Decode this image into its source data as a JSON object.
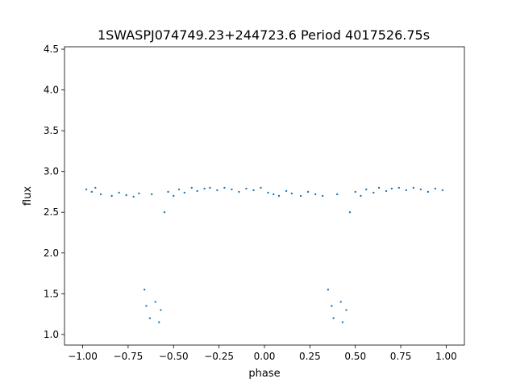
{
  "chart_data": {
    "type": "scatter",
    "title": "1SWASPJ074749.23+244723.6 Period 4017526.75s",
    "xlabel": "phase",
    "ylabel": "flux",
    "xlim": [
      -1.1,
      1.1
    ],
    "ylim": [
      0.87,
      4.53
    ],
    "xticks": [
      -1.0,
      -0.75,
      -0.5,
      -0.25,
      0.0,
      0.25,
      0.5,
      0.75,
      1.0
    ],
    "xtick_labels": [
      "−1.00",
      "−0.75",
      "−0.50",
      "−0.25",
      "0.00",
      "0.25",
      "0.50",
      "0.75",
      "1.00"
    ],
    "yticks": [
      1.0,
      1.5,
      2.0,
      2.5,
      3.0,
      3.5,
      4.0,
      4.5
    ],
    "ytick_labels": [
      "1.0",
      "1.5",
      "2.0",
      "2.5",
      "3.0",
      "3.5",
      "4.0",
      "4.5"
    ],
    "grid": false,
    "marker_color": "#1f77b4",
    "series": [
      {
        "x": [
          -0.98,
          -0.95,
          -0.93,
          -0.9,
          -0.84,
          -0.8,
          -0.76,
          -0.72,
          -0.69,
          -0.66,
          -0.65,
          -0.63,
          -0.62,
          -0.6,
          -0.58,
          -0.57,
          -0.55,
          -0.53,
          -0.5,
          -0.47,
          -0.44,
          -0.4,
          -0.37,
          -0.33,
          -0.3,
          -0.26,
          -0.22,
          -0.18,
          -0.14,
          -0.1,
          -0.06,
          -0.02,
          0.02,
          0.05,
          0.08,
          0.12,
          0.15,
          0.2,
          0.24,
          0.28,
          0.32,
          0.35,
          0.37,
          0.38,
          0.4,
          0.42,
          0.43,
          0.45,
          0.47,
          0.5,
          0.53,
          0.56,
          0.6,
          0.63,
          0.67,
          0.7,
          0.74,
          0.78,
          0.82,
          0.86,
          0.9,
          0.94,
          0.98
        ],
        "y": [
          2.78,
          2.75,
          2.8,
          2.72,
          2.7,
          2.74,
          2.71,
          2.69,
          2.73,
          1.55,
          1.35,
          1.2,
          2.72,
          1.4,
          1.15,
          1.3,
          2.5,
          2.75,
          2.7,
          2.78,
          2.74,
          2.8,
          2.76,
          2.79,
          2.8,
          2.77,
          2.8,
          2.78,
          2.75,
          2.79,
          2.77,
          2.8,
          2.74,
          2.72,
          2.7,
          2.76,
          2.73,
          2.7,
          2.75,
          2.72,
          2.7,
          1.55,
          1.35,
          1.2,
          2.72,
          1.4,
          1.15,
          1.3,
          2.5,
          2.75,
          2.7,
          2.78,
          2.74,
          2.8,
          2.76,
          2.79,
          2.8,
          2.77,
          2.8,
          2.78,
          2.75,
          2.79,
          2.77
        ]
      }
    ]
  }
}
